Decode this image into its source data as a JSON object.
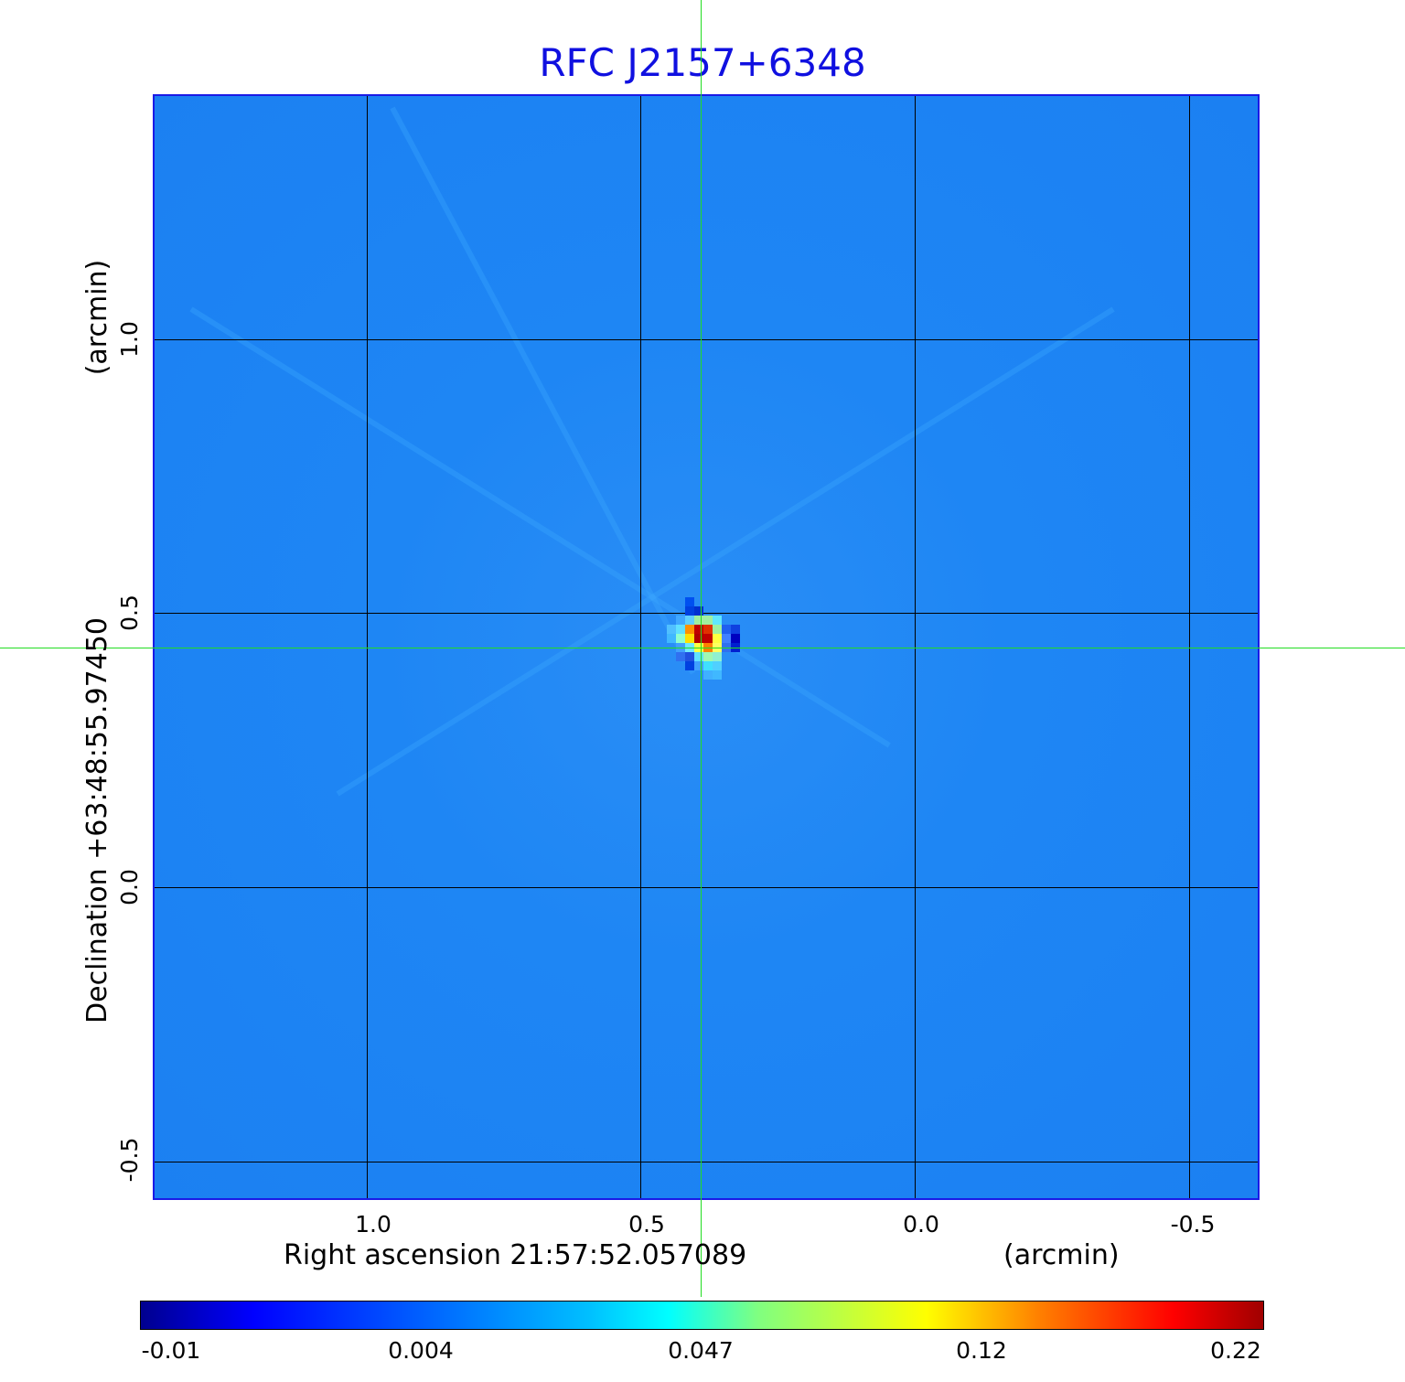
{
  "chart_data": {
    "type": "heatmap",
    "title": "RFC J2157+6348",
    "xlabel": "Right ascension  21:57:52.057089",
    "xunit": "(arcmin)",
    "ylabel": "Declination  +63:48:55.97450",
    "yunit": "(arcmin)",
    "x_ticks": [
      "1.0",
      "0.5",
      "0.0",
      "-0.5"
    ],
    "y_ticks": [
      "1.0",
      "0.5",
      "0.0",
      "-0.5"
    ],
    "grid": true,
    "colormap": "jet",
    "colorbar_ticks": [
      "-0.01",
      "0.004",
      "0.047",
      "0.12",
      "0.22"
    ],
    "colorbar_range": [
      -0.01,
      0.22
    ],
    "peak_color": "#c00000",
    "background_color": "#1e86f4"
  }
}
